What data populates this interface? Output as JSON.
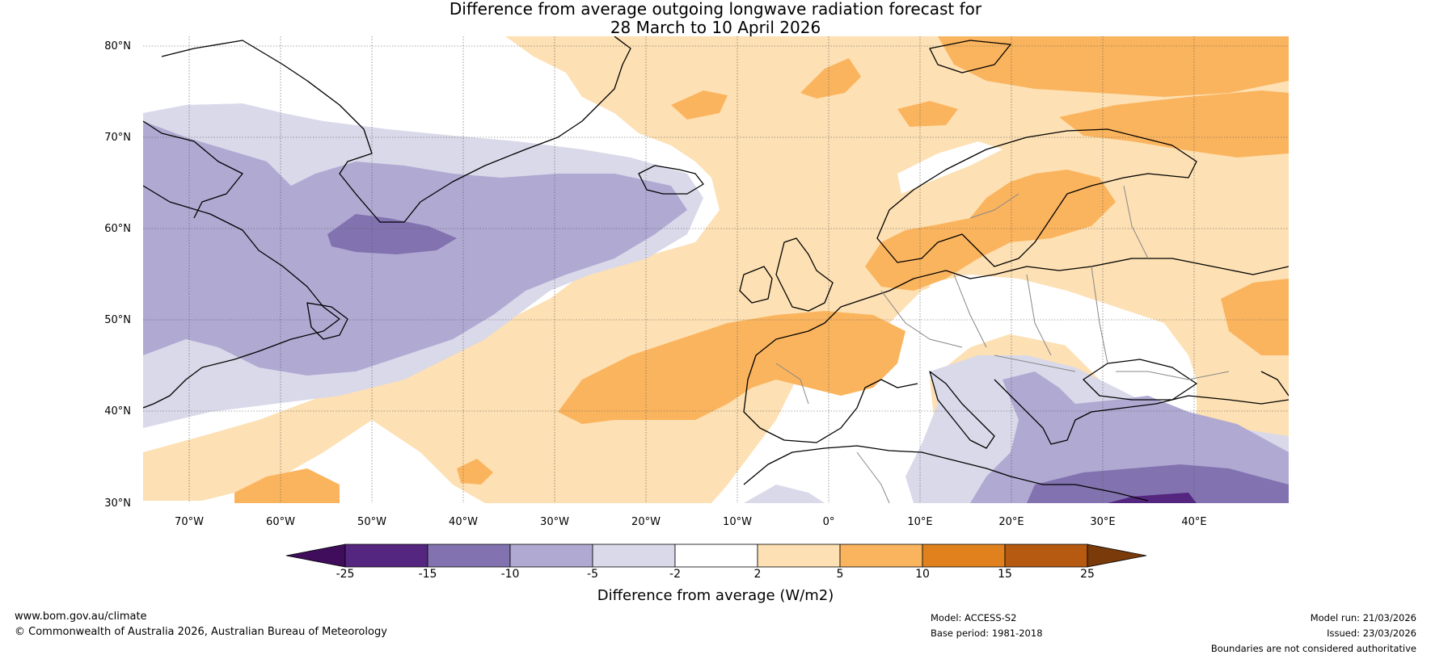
{
  "title": {
    "line1": "Difference from average outgoing longwave radiation forecast for",
    "line2": "28 March to 10 April 2026"
  },
  "map": {
    "lat_labels": [
      "80°N",
      "70°N",
      "60°N",
      "50°N",
      "40°N",
      "30°N"
    ],
    "lon_labels": [
      "70°W",
      "60°W",
      "50°W",
      "40°W",
      "30°W",
      "20°W",
      "10°W",
      "0°",
      "10°E",
      "20°E",
      "30°E",
      "40°E"
    ],
    "lat_range": [
      30,
      81
    ],
    "lon_range": [
      -75,
      50
    ],
    "region": "North Atlantic and Europe"
  },
  "colorbar": {
    "title": "Difference from average (W/m2)",
    "tick_labels": [
      "-25",
      "-15",
      "-10",
      "-5",
      "-2",
      "2",
      "5",
      "10",
      "15",
      "25"
    ],
    "colors": [
      "#3f0d5c",
      "#54267f",
      "#8273b0",
      "#b0a9d2",
      "#d9d9ea",
      "#ffffff",
      "#fde0b3",
      "#fbb45e",
      "#e0811e",
      "#b55a10",
      "#7a3a0a"
    ]
  },
  "footer": {
    "website": "www.bom.gov.au/climate",
    "copyright": "© Commonwealth of Australia 2026, Australian Bureau of Meteorology",
    "model": "Model: ACCESS-S2",
    "base_period": "Base period: 1981-2018",
    "model_run": "Model run: 21/03/2026",
    "issued": "Issued: 23/03/2026",
    "disclaimer": "Boundaries are not considered authoritative"
  }
}
